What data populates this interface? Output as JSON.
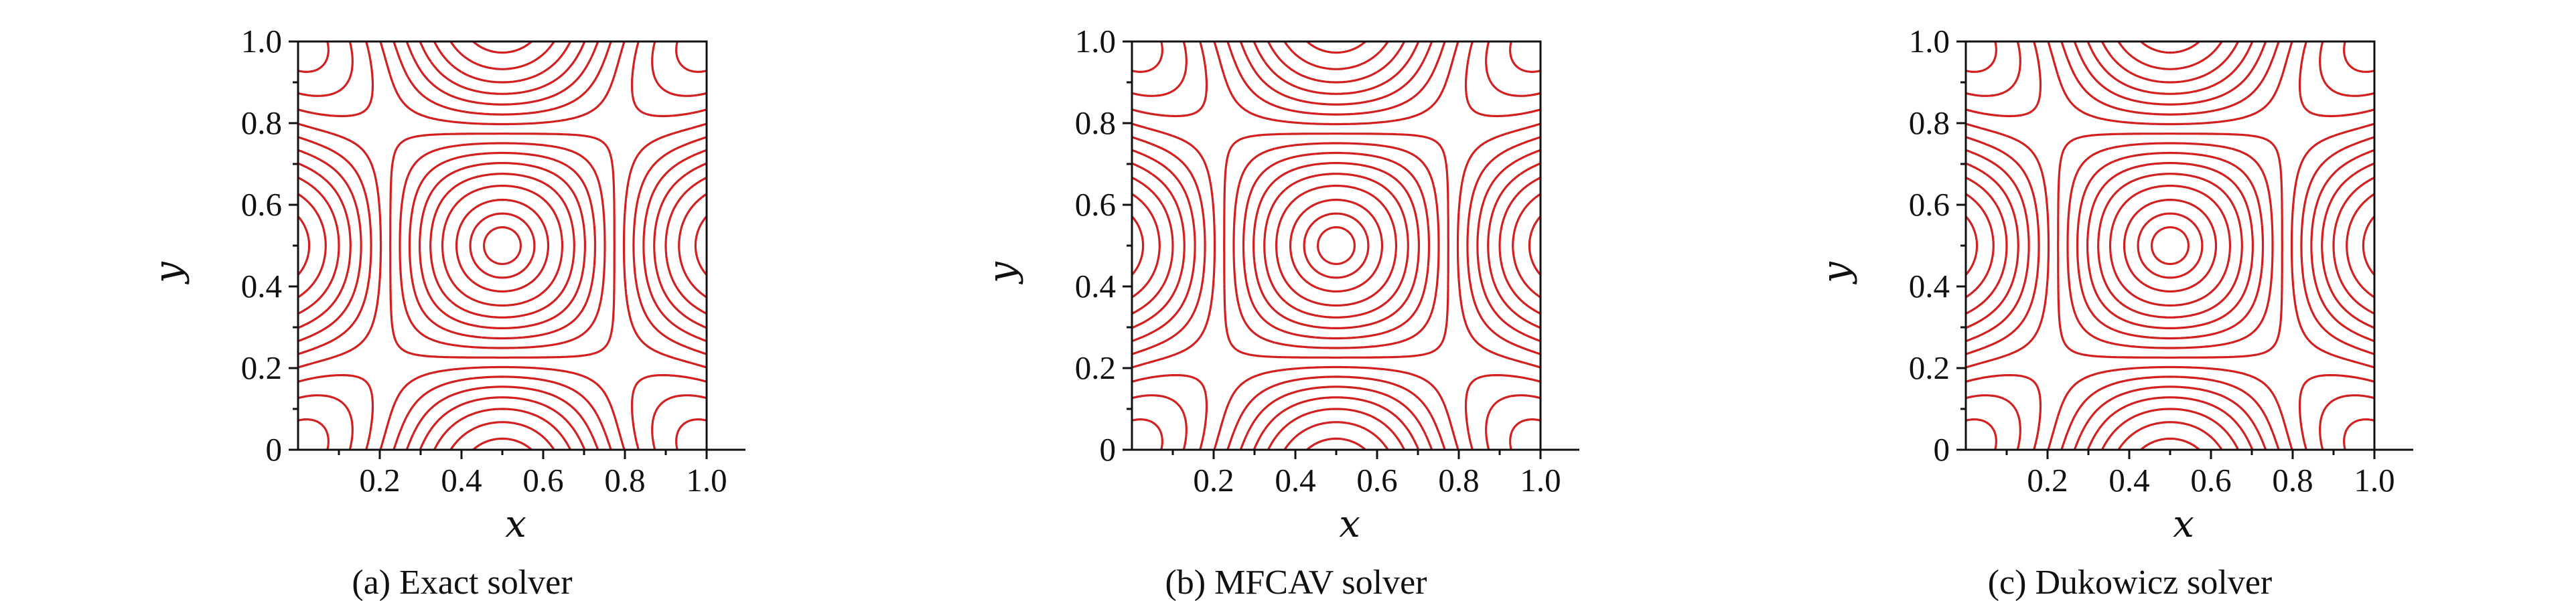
{
  "chart_data": [
    {
      "type": "contour",
      "caption": "(a) Exact solver",
      "xlabel": "x",
      "ylabel": "y",
      "xlim": [
        0,
        1
      ],
      "ylim": [
        0,
        1
      ],
      "xticks": [
        "0.2",
        "0.4",
        "0.6",
        "0.8",
        "1.0"
      ],
      "yticks": [
        "0",
        "0.2",
        "0.4",
        "0.6",
        "0.8",
        "1.0"
      ],
      "field": "sin(pi*x)*sin(pi*y) + cos(2*pi*x)*cos(2*pi*y)",
      "levels": [
        -0.9,
        -0.7,
        -0.5,
        -0.3,
        -0.1,
        0.1,
        0.3,
        0.5,
        0.7,
        0.9,
        1.1,
        1.3,
        1.5,
        1.7,
        1.85,
        1.95
      ],
      "line_color": "#d21f1f"
    },
    {
      "type": "contour",
      "caption": "(b) MFCAV solver",
      "xlabel": "x",
      "ylabel": "y",
      "xlim": [
        0,
        1
      ],
      "ylim": [
        0,
        1
      ],
      "xticks": [
        "0.2",
        "0.4",
        "0.6",
        "0.8",
        "1.0"
      ],
      "yticks": [
        "0",
        "0.2",
        "0.4",
        "0.6",
        "0.8",
        "1.0"
      ],
      "field": "sin(pi*x)*sin(pi*y) + cos(2*pi*x)*cos(2*pi*y)",
      "levels": [
        -0.9,
        -0.7,
        -0.5,
        -0.3,
        -0.1,
        0.1,
        0.3,
        0.5,
        0.7,
        0.9,
        1.1,
        1.3,
        1.5,
        1.7,
        1.85,
        1.95
      ],
      "line_color": "#d21f1f"
    },
    {
      "type": "contour",
      "caption": "(c) Dukowicz solver",
      "xlabel": "x",
      "ylabel": "y",
      "xlim": [
        0,
        1
      ],
      "ylim": [
        0,
        1
      ],
      "xticks": [
        "0.2",
        "0.4",
        "0.6",
        "0.8",
        "1.0"
      ],
      "yticks": [
        "0",
        "0.2",
        "0.4",
        "0.6",
        "0.8",
        "1.0"
      ],
      "field": "sin(pi*x)*sin(pi*y) + cos(2*pi*x)*cos(2*pi*y)",
      "levels": [
        -0.9,
        -0.7,
        -0.5,
        -0.3,
        -0.1,
        0.1,
        0.3,
        0.5,
        0.7,
        0.9,
        1.1,
        1.3,
        1.5,
        1.7,
        1.85,
        1.95
      ],
      "line_color": "#d21f1f"
    }
  ]
}
